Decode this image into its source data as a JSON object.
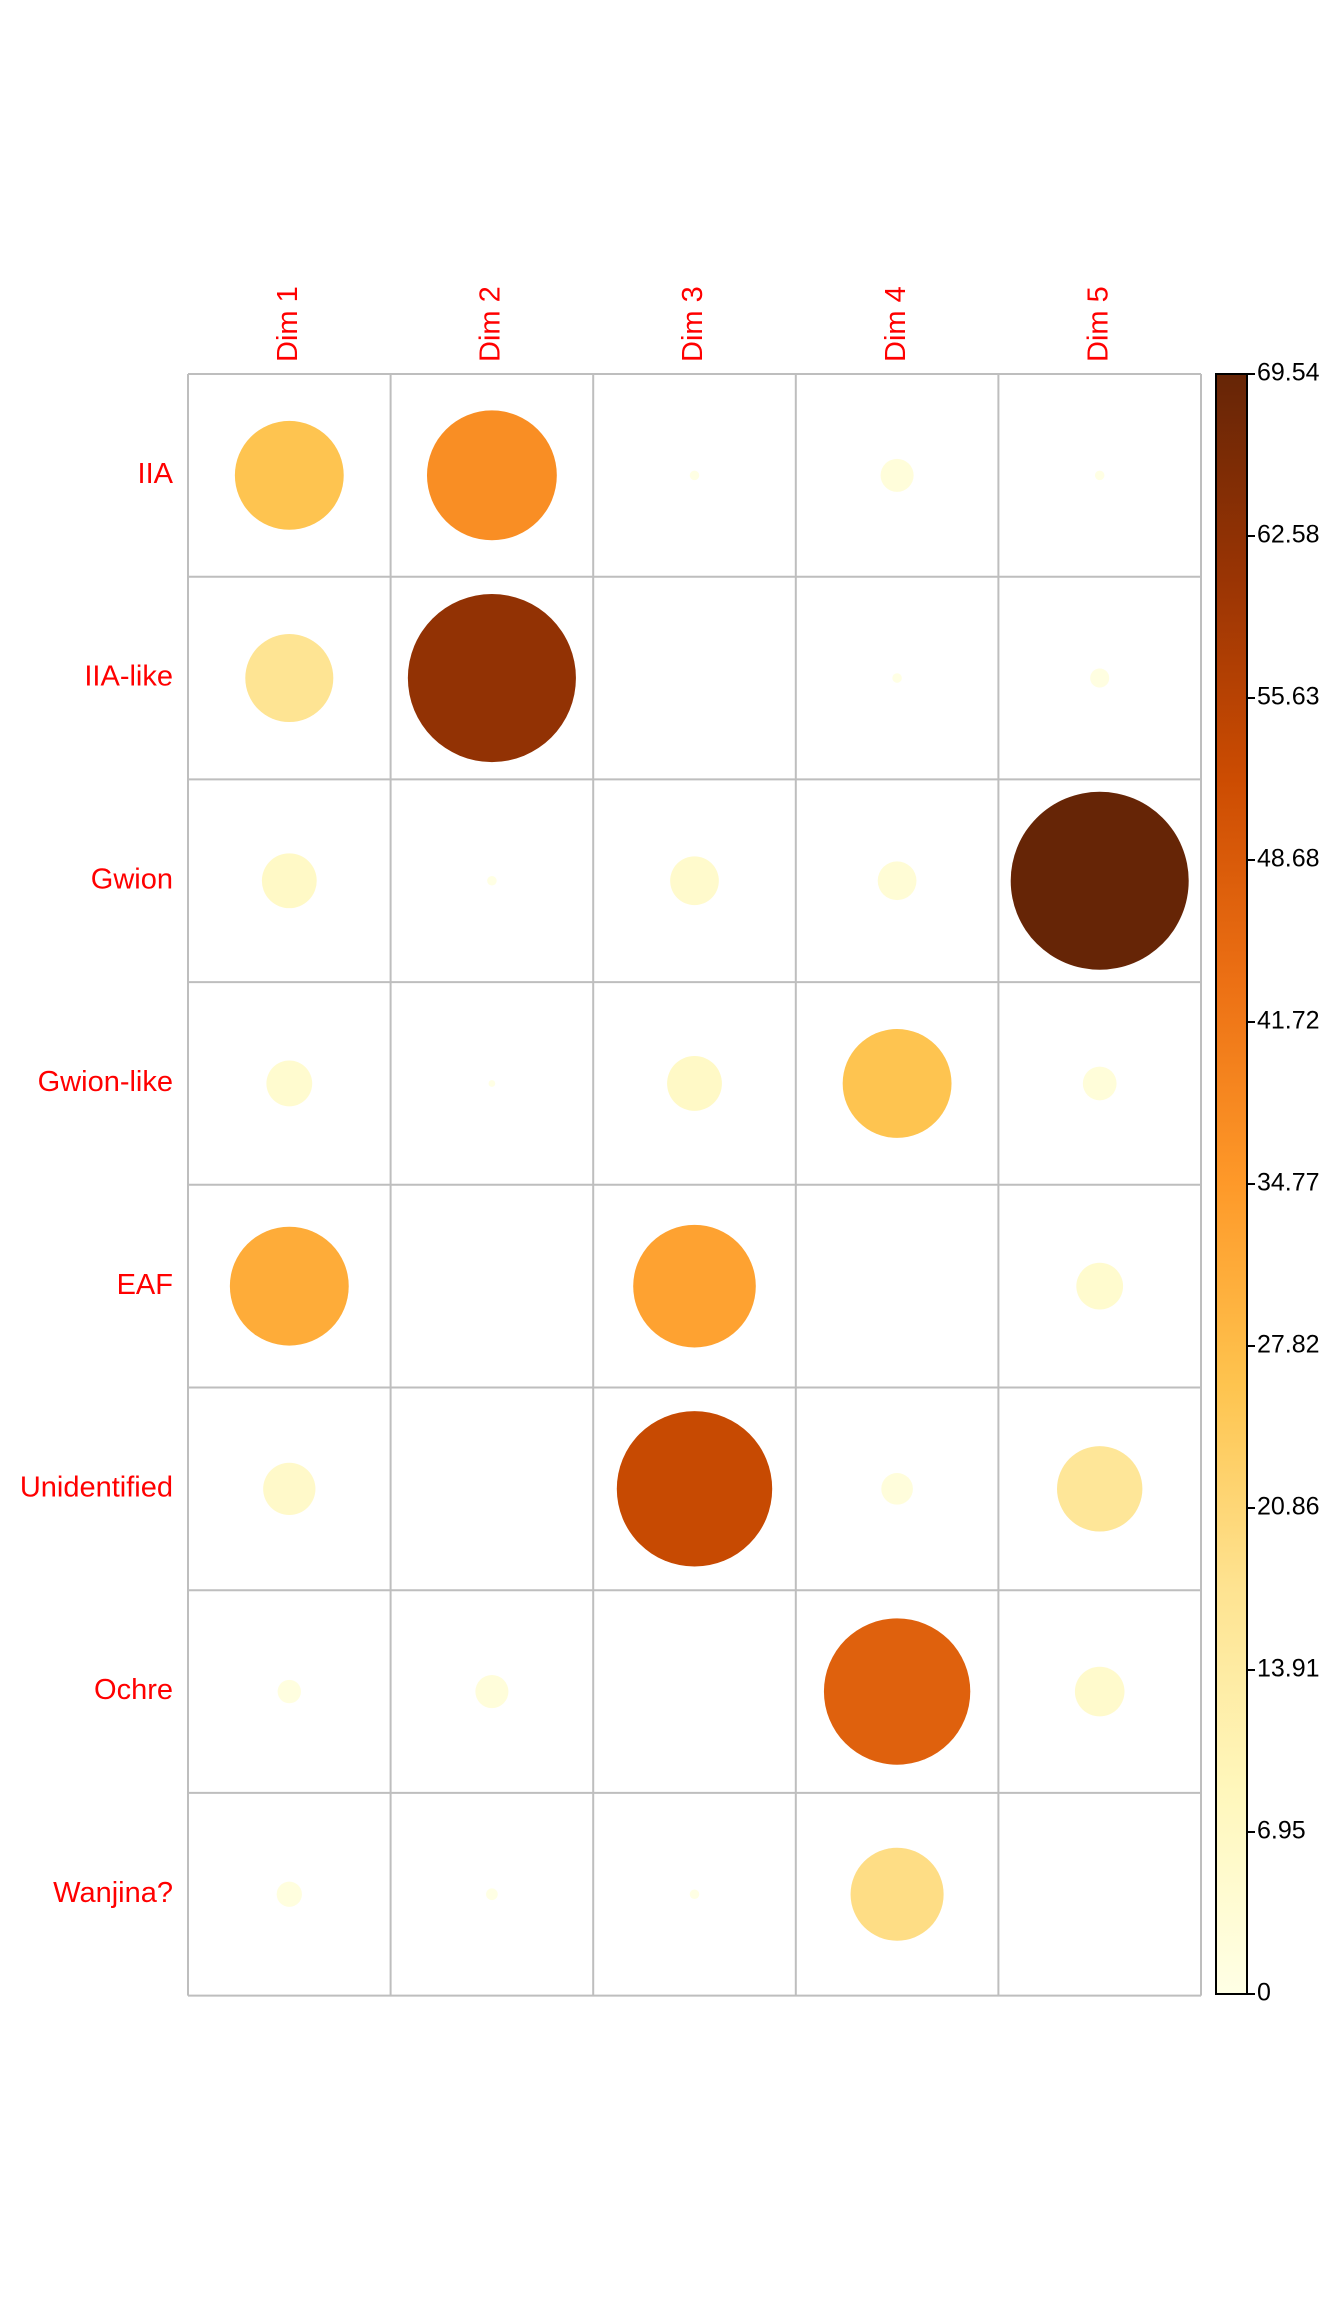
{
  "chart_data": {
    "type": "heatmap",
    "subtype": "corrplot-circle",
    "columns": [
      "Dim 1",
      "Dim 2",
      "Dim 3",
      "Dim 4",
      "Dim 5"
    ],
    "rows": [
      "IIA",
      "IIA-like",
      "Gwion",
      "Gwion-like",
      "EAF",
      "Unidentified",
      "Ochre",
      "Wanjina?"
    ],
    "values": [
      [
        26.0,
        37.0,
        0.2,
        2.4,
        0.2
      ],
      [
        17.0,
        62.0,
        0.0,
        0.2,
        0.8
      ],
      [
        6.6,
        0.2,
        5.2,
        3.3,
        69.54
      ],
      [
        4.6,
        0.1,
        6.6,
        26.0,
        2.5
      ],
      [
        31.0,
        0.0,
        33.0,
        0.0,
        4.8
      ],
      [
        6.0,
        0.0,
        53.0,
        2.2,
        16.0
      ],
      [
        1.2,
        2.4,
        0.0,
        47.0,
        5.4
      ],
      [
        1.4,
        0.3,
        0.2,
        19.0,
        0.0
      ]
    ],
    "colorbar": {
      "ticks": [
        "0",
        "6.95",
        "13.91",
        "20.86",
        "27.82",
        "34.77",
        "41.72",
        "48.68",
        "55.63",
        "62.58",
        "69.54"
      ],
      "min": 0,
      "max": 69.54,
      "palette": [
        "#ffffe5",
        "#fff7bc",
        "#fee391",
        "#fec44f",
        "#fe9929",
        "#ec7014",
        "#cc4c02",
        "#993404",
        "#662506"
      ]
    },
    "label_color": "#ff0000",
    "grid_color": "#bebebe"
  }
}
